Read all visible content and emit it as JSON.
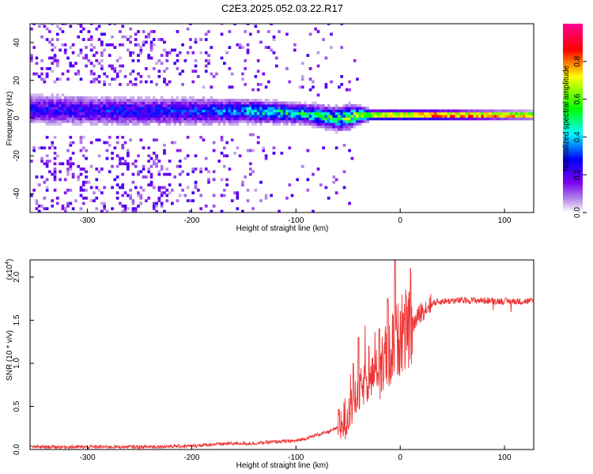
{
  "title": "C2E3.2025.052.03.22.R17",
  "chart_data": [
    {
      "type": "heatmap",
      "title": "C2E3.2025.052.03.22.R17",
      "xlabel": "Height of straight line (km)",
      "ylabel": "Frequency (Hz)",
      "xlim": [
        -355,
        128
      ],
      "ylim": [
        -50,
        50
      ],
      "x_ticks": [
        "-300",
        "-200",
        "-100",
        "0",
        "100"
      ],
      "y_ticks": [
        "-40",
        "-20",
        "0",
        "20",
        "40"
      ],
      "x_tick_values": [
        -300,
        -200,
        -100,
        0,
        100
      ],
      "y_tick_values": [
        -40,
        -20,
        0,
        20,
        40
      ],
      "colorbar": {
        "label": "Normalized spectral amplitude",
        "range": [
          0,
          1
        ],
        "ticks": [
          "0.0",
          "0.2",
          "0.4",
          "0.6",
          "0.8"
        ],
        "tick_values": [
          0,
          0.2,
          0.4,
          0.6,
          0.8
        ],
        "colormap": [
          "#ffffff",
          "#8a2be2",
          "#0000ff",
          "#00ffff",
          "#00ff00",
          "#ffff00",
          "#ff0000",
          "#ff00aa"
        ]
      },
      "ridge": {
        "center_hz": [
          [
            -350,
            4
          ],
          [
            -250,
            3
          ],
          [
            -150,
            3
          ],
          [
            -100,
            2
          ],
          [
            -60,
            -1
          ],
          [
            -40,
            1
          ],
          [
            0,
            1
          ],
          [
            128,
            1
          ]
        ],
        "amplitude": [
          [
            -355,
            0.25
          ],
          [
            -200,
            0.3
          ],
          [
            -120,
            0.45
          ],
          [
            -60,
            0.55
          ],
          [
            -20,
            0.75
          ],
          [
            30,
            0.95
          ],
          [
            128,
            0.9
          ]
        ],
        "width_hz": [
          [
            -355,
            9
          ],
          [
            -200,
            8
          ],
          [
            -100,
            6
          ],
          [
            -50,
            7
          ],
          [
            -30,
            3
          ],
          [
            128,
            2
          ]
        ]
      }
    },
    {
      "type": "line",
      "xlabel": "Height of straight line (km)",
      "ylabel": "SNR (10 * v/v)",
      "y_scale_label": "(x10^4)",
      "y_scale_base": "(x10",
      "y_scale_exp": "4",
      "y_scale_close": ")",
      "xlim": [
        -355,
        128
      ],
      "ylim": [
        0,
        2.2
      ],
      "x_ticks": [
        "-300",
        "-200",
        "-100",
        "0",
        "100"
      ],
      "y_ticks": [
        "0.0",
        "0.5",
        "1.0",
        "1.5",
        "2.0"
      ],
      "x_tick_values": [
        -300,
        -200,
        -100,
        0,
        100
      ],
      "y_tick_values": [
        0,
        0.5,
        1.0,
        1.5,
        2.0
      ],
      "color": "#ee3333",
      "series": [
        {
          "x": [
            -355,
            -300,
            -250,
            -200,
            -180,
            -160,
            -140,
            -120,
            -100,
            -90,
            -80,
            -70,
            -60,
            -55,
            -50,
            -45,
            -40,
            -35,
            -30,
            -25,
            -20,
            -15,
            -10,
            -5,
            0,
            5,
            10,
            15,
            20,
            25,
            30,
            40,
            60,
            80,
            100,
            128
          ],
          "values": [
            0.03,
            0.03,
            0.03,
            0.04,
            0.06,
            0.07,
            0.07,
            0.09,
            0.1,
            0.13,
            0.17,
            0.2,
            0.25,
            0.32,
            0.42,
            0.55,
            0.65,
            0.75,
            0.8,
            0.9,
            0.95,
            1.05,
            1.15,
            1.25,
            1.3,
            1.35,
            1.4,
            1.5,
            1.6,
            1.65,
            1.7,
            1.72,
            1.73,
            1.73,
            1.72,
            1.72
          ]
        }
      ],
      "peaks": [
        [
          -45,
          1.0
        ],
        [
          -40,
          1.3
        ],
        [
          -30,
          1.2
        ],
        [
          -20,
          1.4
        ],
        [
          -12,
          1.75
        ],
        [
          -5,
          2.2
        ],
        [
          0,
          1.6
        ],
        [
          10,
          2.1
        ]
      ]
    }
  ]
}
